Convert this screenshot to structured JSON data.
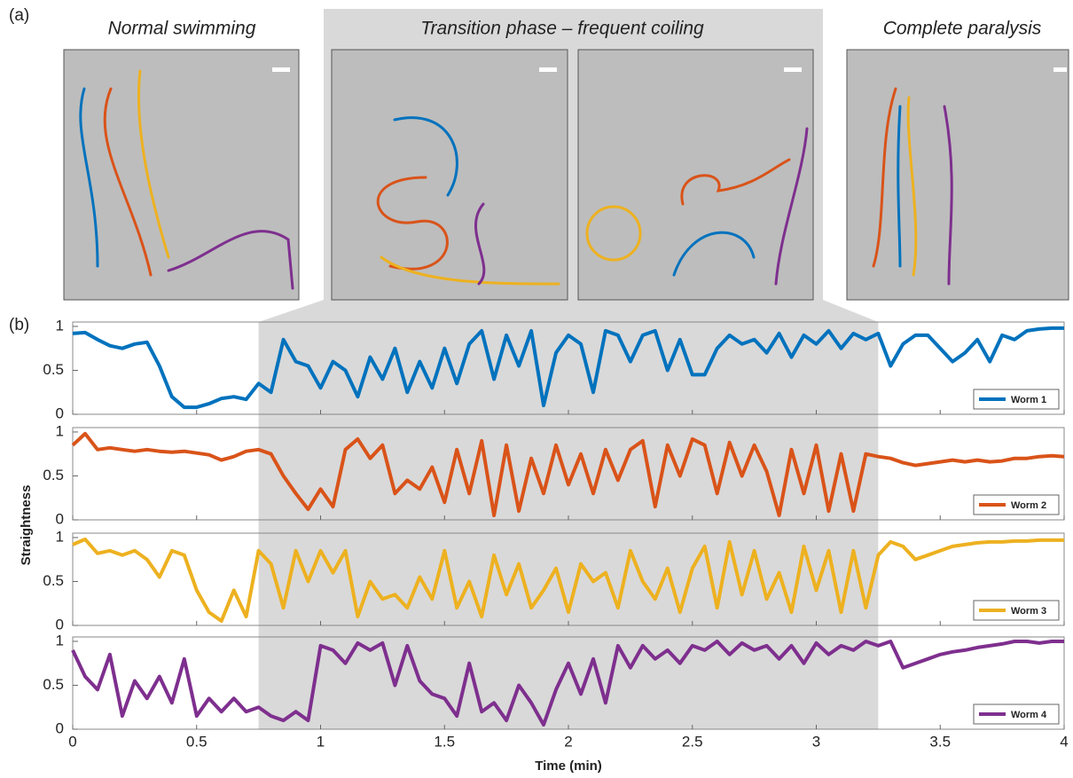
{
  "panel_a": {
    "label": "(a)",
    "captions": [
      "Normal swimming",
      "Transition phase – frequent coiling",
      "Complete paralysis"
    ]
  },
  "chart_data": {
    "type": "line",
    "panel_label": "(b)",
    "x_label": "Time (min)",
    "y_label": "Straightness",
    "xlim": [
      0,
      4
    ],
    "xticks": [
      0,
      0.5,
      1,
      1.5,
      2,
      2.5,
      3,
      3.5,
      4
    ],
    "ylim": [
      0,
      1.05
    ],
    "yticks": [
      0,
      0.5,
      1
    ],
    "shaded_span": [
      0.75,
      3.25
    ],
    "legend": "lower right",
    "x": [
      0,
      0.05,
      0.1,
      0.15,
      0.2,
      0.25,
      0.3,
      0.35,
      0.4,
      0.45,
      0.5,
      0.55,
      0.6,
      0.65,
      0.7,
      0.75,
      0.8,
      0.85,
      0.9,
      0.95,
      1,
      1.05,
      1.1,
      1.15,
      1.2,
      1.25,
      1.3,
      1.35,
      1.4,
      1.45,
      1.5,
      1.55,
      1.6,
      1.65,
      1.7,
      1.75,
      1.8,
      1.85,
      1.9,
      1.95,
      2,
      2.05,
      2.1,
      2.15,
      2.2,
      2.25,
      2.3,
      2.35,
      2.4,
      2.45,
      2.5,
      2.55,
      2.6,
      2.65,
      2.7,
      2.75,
      2.8,
      2.85,
      2.9,
      2.95,
      3,
      3.05,
      3.1,
      3.15,
      3.2,
      3.25,
      3.3,
      3.35,
      3.4,
      3.45,
      3.5,
      3.55,
      3.6,
      3.65,
      3.7,
      3.75,
      3.8,
      3.85,
      3.9,
      3.95,
      4
    ],
    "series": [
      {
        "name": "Worm 1",
        "color": "#0072bd",
        "values": [
          0.92,
          0.93,
          0.85,
          0.78,
          0.75,
          0.8,
          0.82,
          0.55,
          0.2,
          0.08,
          0.08,
          0.12,
          0.18,
          0.2,
          0.17,
          0.35,
          0.25,
          0.85,
          0.6,
          0.55,
          0.3,
          0.6,
          0.5,
          0.2,
          0.65,
          0.4,
          0.75,
          0.25,
          0.6,
          0.3,
          0.75,
          0.35,
          0.8,
          0.95,
          0.4,
          0.9,
          0.55,
          0.95,
          0.1,
          0.7,
          0.9,
          0.8,
          0.25,
          0.95,
          0.9,
          0.6,
          0.9,
          0.95,
          0.5,
          0.85,
          0.45,
          0.45,
          0.75,
          0.9,
          0.8,
          0.85,
          0.7,
          0.92,
          0.65,
          0.9,
          0.8,
          0.95,
          0.75,
          0.92,
          0.85,
          0.92,
          0.55,
          0.8,
          0.9,
          0.9,
          0.75,
          0.6,
          0.7,
          0.85,
          0.6,
          0.9,
          0.85,
          0.95,
          0.97,
          0.98,
          0.98
        ]
      },
      {
        "name": "Worm 2",
        "color": "#d95319",
        "values": [
          0.85,
          0.98,
          0.8,
          0.82,
          0.8,
          0.78,
          0.8,
          0.78,
          0.77,
          0.78,
          0.76,
          0.74,
          0.68,
          0.72,
          0.78,
          0.8,
          0.75,
          0.5,
          0.3,
          0.12,
          0.35,
          0.15,
          0.8,
          0.92,
          0.7,
          0.85,
          0.3,
          0.45,
          0.35,
          0.6,
          0.2,
          0.8,
          0.3,
          0.9,
          0.05,
          0.85,
          0.1,
          0.7,
          0.3,
          0.85,
          0.4,
          0.75,
          0.3,
          0.8,
          0.45,
          0.8,
          0.9,
          0.15,
          0.85,
          0.5,
          0.92,
          0.85,
          0.3,
          0.88,
          0.5,
          0.85,
          0.55,
          0.05,
          0.8,
          0.3,
          0.85,
          0.1,
          0.75,
          0.1,
          0.75,
          0.72,
          0.7,
          0.65,
          0.62,
          0.64,
          0.66,
          0.68,
          0.66,
          0.68,
          0.66,
          0.67,
          0.7,
          0.7,
          0.72,
          0.73,
          0.72
        ]
      },
      {
        "name": "Worm 3",
        "color": "#edb120",
        "values": [
          0.92,
          0.98,
          0.82,
          0.85,
          0.8,
          0.85,
          0.75,
          0.55,
          0.85,
          0.8,
          0.4,
          0.15,
          0.05,
          0.4,
          0.1,
          0.85,
          0.7,
          0.2,
          0.85,
          0.5,
          0.85,
          0.6,
          0.85,
          0.1,
          0.5,
          0.3,
          0.35,
          0.2,
          0.55,
          0.3,
          0.85,
          0.2,
          0.5,
          0.1,
          0.8,
          0.35,
          0.7,
          0.2,
          0.4,
          0.65,
          0.15,
          0.7,
          0.5,
          0.6,
          0.2,
          0.85,
          0.5,
          0.3,
          0.65,
          0.15,
          0.65,
          0.9,
          0.2,
          0.95,
          0.35,
          0.85,
          0.3,
          0.6,
          0.15,
          0.9,
          0.4,
          0.85,
          0.15,
          0.85,
          0.2,
          0.8,
          0.95,
          0.9,
          0.75,
          0.8,
          0.85,
          0.9,
          0.92,
          0.94,
          0.95,
          0.95,
          0.96,
          0.96,
          0.97,
          0.97,
          0.97
        ]
      },
      {
        "name": "Worm 4",
        "color": "#7e2f8e",
        "values": [
          0.9,
          0.6,
          0.45,
          0.85,
          0.15,
          0.55,
          0.35,
          0.6,
          0.3,
          0.8,
          0.15,
          0.35,
          0.2,
          0.35,
          0.2,
          0.25,
          0.15,
          0.1,
          0.2,
          0.1,
          0.95,
          0.9,
          0.75,
          0.98,
          0.9,
          0.98,
          0.5,
          0.95,
          0.55,
          0.4,
          0.35,
          0.15,
          0.75,
          0.2,
          0.3,
          0.1,
          0.5,
          0.3,
          0.05,
          0.45,
          0.75,
          0.4,
          0.8,
          0.3,
          0.95,
          0.7,
          0.95,
          0.8,
          0.9,
          0.75,
          0.95,
          0.9,
          1.0,
          0.85,
          0.98,
          0.9,
          0.95,
          0.8,
          0.95,
          0.75,
          0.98,
          0.85,
          0.95,
          0.9,
          1.0,
          0.95,
          1.0,
          0.7,
          0.75,
          0.8,
          0.85,
          0.88,
          0.9,
          0.93,
          0.95,
          0.97,
          1.0,
          1.0,
          0.98,
          1.0,
          1.0
        ]
      }
    ]
  }
}
